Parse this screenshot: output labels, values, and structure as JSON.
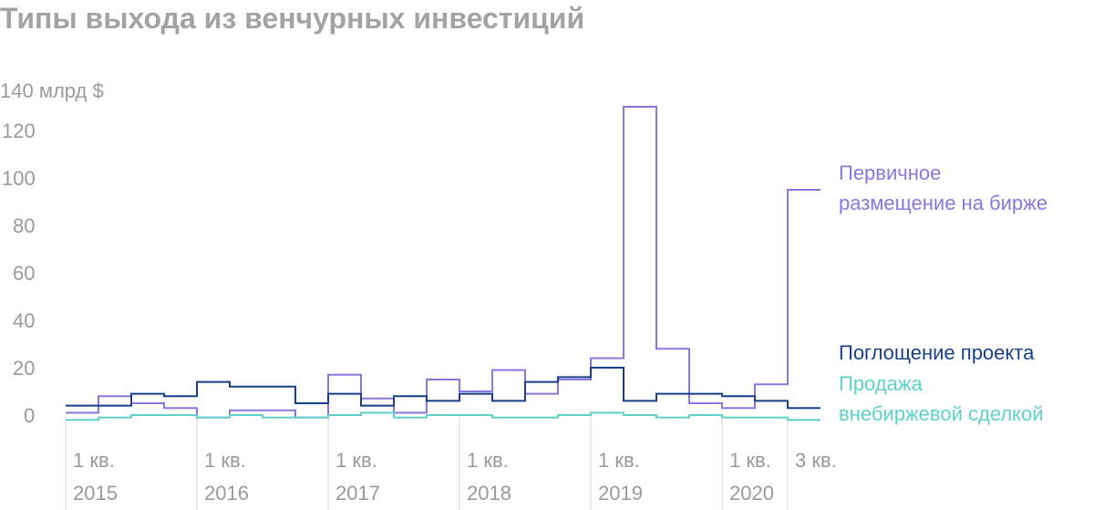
{
  "title": "Типы выхода из венчурных инвестиций",
  "colors": {
    "ipo": "#8a76e0",
    "acquisition": "#173f8a",
    "otc": "#5fd3c9",
    "axis": "#9a9a9a",
    "grid": "#dddddd"
  },
  "chart_data": {
    "type": "line",
    "step": true,
    "title": "Типы выхода из венчурных инвестиций",
    "ylabel": "140 млрд $",
    "ylim": [
      0,
      140
    ],
    "y_ticks": [
      0,
      20,
      40,
      60,
      80,
      100,
      120
    ],
    "y_tick_labels": [
      "0",
      "20",
      "40",
      "60",
      "80",
      "100",
      "120"
    ],
    "x": [
      "1 кв. 2015",
      "2 кв. 2015",
      "3 кв. 2015",
      "4 кв. 2015",
      "1 кв. 2016",
      "2 кв. 2016",
      "3 кв. 2016",
      "4 кв. 2016",
      "1 кв. 2017",
      "2 кв. 2017",
      "3 кв. 2017",
      "4 кв. 2017",
      "1 кв. 2018",
      "2 кв. 2018",
      "3 кв. 2018",
      "4 кв. 2018",
      "1 кв. 2019",
      "2 кв. 2019",
      "3 кв. 2019",
      "4 кв. 2019",
      "1 кв. 2020",
      "2 кв. 2020",
      "3 кв. 2020"
    ],
    "x_tick_labels": [
      {
        "line1": "1 кв.",
        "line2": "2015",
        "index": 0
      },
      {
        "line1": "1 кв.",
        "line2": "2016",
        "index": 4
      },
      {
        "line1": "1 кв.",
        "line2": "2017",
        "index": 8
      },
      {
        "line1": "1 кв.",
        "line2": "2018",
        "index": 12
      },
      {
        "line1": "1 кв.",
        "line2": "2019",
        "index": 16
      },
      {
        "line1": "1 кв.",
        "line2": "2020",
        "index": 20
      },
      {
        "line1": "3 кв.",
        "line2": "",
        "index": 22
      }
    ],
    "series": [
      {
        "name": "Первичное размещение на бирже",
        "label_lines": [
          "Первичное",
          "размещение на бирже"
        ],
        "color": "#8a76e0",
        "values": [
          1,
          8,
          5,
          3,
          -1,
          2,
          2,
          -1,
          17,
          7,
          1,
          15,
          10,
          19,
          9,
          15,
          24,
          130,
          28,
          5,
          3,
          13,
          95
        ]
      },
      {
        "name": "Поглощение проекта",
        "label_lines": [
          "Поглощение проекта"
        ],
        "color": "#173f8a",
        "values": [
          4,
          4,
          9,
          8,
          14,
          12,
          12,
          5,
          9,
          4,
          8,
          6,
          9,
          6,
          14,
          16,
          20,
          6,
          9,
          9,
          8,
          6,
          3
        ]
      },
      {
        "name": "Продажа внебиржевой сделкой",
        "label_lines": [
          "Продажа",
          "внебиржевой сделкой"
        ],
        "color": "#5fd3c9",
        "values": [
          -2,
          -1,
          0,
          0,
          -1,
          0,
          -1,
          -1,
          0,
          1,
          -1,
          0,
          0,
          -1,
          -1,
          0,
          1,
          0,
          -1,
          0,
          -1,
          -1,
          -2
        ]
      }
    ]
  }
}
